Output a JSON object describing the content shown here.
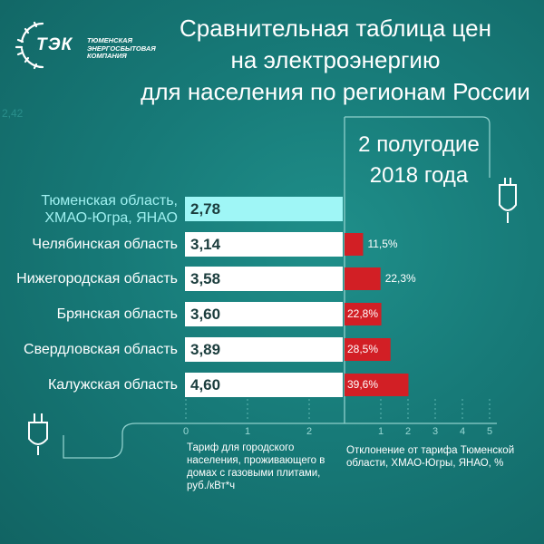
{
  "logo": {
    "abbr": "ТЭК",
    "name": "ТЮМЕНСКАЯ ЭНЕРГОСБЫТОВАЯ КОМПАНИЯ"
  },
  "title_lines": [
    "Сравнительная таблица цен",
    "на электроэнергию",
    "для населения по регионам России"
  ],
  "period_lines": [
    "2 полугодие",
    "2018 года"
  ],
  "ghost_text": "2,42",
  "colors": {
    "background": "#177a78",
    "value_box": "#ffffff",
    "value_box_highlight": "#9ff6f6",
    "deviation_bar": "#d21f25",
    "label_highlight": "#9ff0f0"
  },
  "chart_data": {
    "type": "bar",
    "categories": [
      "Тюменская область,\nХМАО-Югра, ЯНАО",
      "Челябинская область",
      "Нижегородская область",
      "Брянская область",
      "Свердловская область",
      "Калужская область"
    ],
    "series": [
      {
        "values": [
          2.78,
          3.14,
          3.58,
          3.6,
          3.89,
          4.6
        ],
        "labels": [
          "2,78",
          "3,14",
          "3,58",
          "3,60",
          "3,89",
          "4,60"
        ]
      },
      {
        "values": [
          null,
          11.5,
          22.3,
          22.8,
          28.5,
          39.6
        ],
        "labels": [
          "",
          "11,5%",
          "22,3%",
          "22,8%",
          "28,5%",
          "39,6%"
        ]
      }
    ],
    "highlight_index": 0,
    "left_axis": {
      "ticks": [
        "0",
        "1",
        "2"
      ],
      "xlabel": "Тариф для городского населения, проживающего в домах с газовыми плитами, руб./кВт*ч"
    },
    "right_axis": {
      "ticks": [
        "1",
        "2",
        "3",
        "4",
        "5"
      ],
      "xlabel": "Отклонение от тарифа Тюменской области, ХМАО-Югры, ЯНАО, %"
    }
  }
}
